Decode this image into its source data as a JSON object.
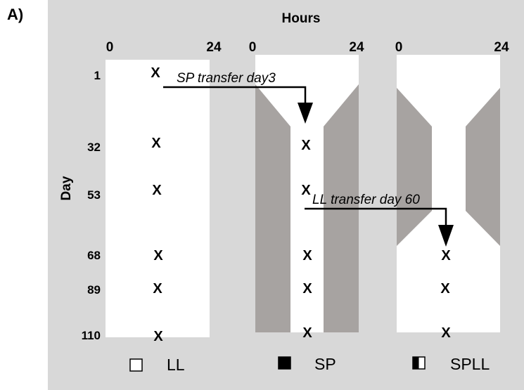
{
  "panel_label": "A)",
  "axis": {
    "top_title": "Hours",
    "left_title": "Day"
  },
  "columns": [
    {
      "hour_start": "0",
      "hour_end": "24",
      "legend_label": "LL",
      "legend_symbol": "open-square"
    },
    {
      "hour_start": "0",
      "hour_end": "24",
      "legend_label": "SP",
      "legend_symbol": "filled-square"
    },
    {
      "hour_start": "0",
      "hour_end": "24",
      "legend_label": "SPLL",
      "legend_symbol": "half-filled-square"
    }
  ],
  "days": [
    "1",
    "32",
    "53",
    "68",
    "89",
    "110"
  ],
  "marker": "X",
  "transfers": [
    {
      "label": "SP transfer day3"
    },
    {
      "label": "LL transfer day 60"
    }
  ],
  "colors": {
    "background": "#d8d8d8",
    "light_region": "#ffffff",
    "dark_region": "#a7a3a1",
    "ink": "#000000"
  }
}
